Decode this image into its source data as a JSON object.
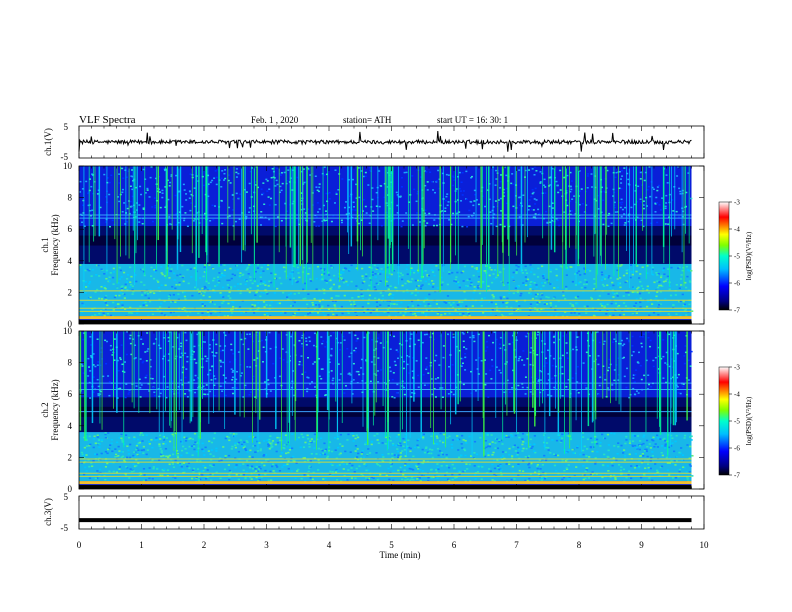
{
  "header": {
    "title": "VLF  Spectra",
    "date": "Feb. 1  , 2020",
    "station": "station= ATH",
    "start": "start  UT  =    16: 30: 1"
  },
  "chart_data": [
    {
      "type": "line",
      "name": "ch1-waveform",
      "ylabel": "ch.1(V)",
      "ylim": [
        -5,
        5
      ],
      "y_ticks": [
        {
          "v": 5,
          "label": "5"
        },
        {
          "v": -5,
          "label": "-5"
        }
      ],
      "xlim": [
        0,
        10
      ],
      "data_end_min": 9.8,
      "mean": 0.0,
      "amplitude_typical": 0.6,
      "color": "#000000"
    },
    {
      "type": "heatmap",
      "name": "ch1-spectrogram",
      "ylabel": "ch.1\nFrequency  (kHz)",
      "ylabel_line1": "ch.1",
      "ylabel_line2": "Frequency  (kHz)",
      "ylim": [
        0,
        10
      ],
      "y_ticks": [
        "0",
        "2",
        "4",
        "6",
        "8",
        "10"
      ],
      "xlim": [
        0,
        10
      ],
      "data_end_min": 9.8,
      "dark_band_khz": [
        3.8,
        6.2
      ],
      "colorbar": {
        "label": "log(PSD)(V²/Hz)",
        "ticks": [
          "-3",
          "-4",
          "-5",
          "-6",
          "-7"
        ],
        "range": [
          -7,
          -3
        ]
      }
    },
    {
      "type": "heatmap",
      "name": "ch2-spectrogram",
      "ylabel_line1": "ch.2",
      "ylabel_line2": "Frequency  (kHz)",
      "ylim": [
        0,
        10
      ],
      "y_ticks": [
        "0",
        "2",
        "4",
        "6",
        "8",
        "10"
      ],
      "xlim": [
        0,
        10
      ],
      "data_end_min": 9.8,
      "dark_band_khz": [
        3.6,
        5.8
      ],
      "colorbar": {
        "label": "log(PSD)(V²/Hz)",
        "ticks": [
          "-3",
          "-4",
          "-5",
          "-6",
          "-7"
        ],
        "range": [
          -7,
          -3
        ]
      }
    },
    {
      "type": "line",
      "name": "ch3-waveform",
      "ylabel": "ch.3(V)",
      "ylim": [
        -5,
        5
      ],
      "y_ticks": [
        {
          "v": 5,
          "label": "5"
        },
        {
          "v": -5,
          "label": "-5"
        }
      ],
      "xlim": [
        0,
        10
      ],
      "data_end_min": 9.8,
      "value": -2.3,
      "color": "#000000"
    }
  ],
  "x_axis": {
    "label": "Time  (min)",
    "ticks": [
      "0",
      "1",
      "2",
      "3",
      "4",
      "5",
      "6",
      "7",
      "8",
      "9",
      "10"
    ]
  },
  "colors": {
    "colormap": [
      "#000000",
      "#00007f",
      "#0000ff",
      "#00bfff",
      "#00ffcc",
      "#7fff00",
      "#ffff00",
      "#ff7f00",
      "#ff0000",
      "#ffffff"
    ]
  }
}
